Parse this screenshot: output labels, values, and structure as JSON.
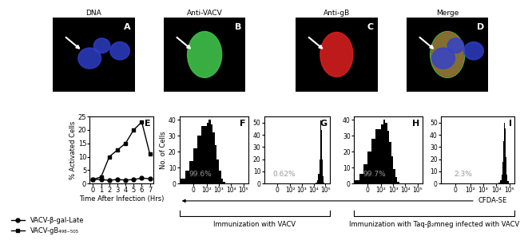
{
  "chart_data": [
    {
      "type": "image",
      "label": "A",
      "title": "DNA"
    },
    {
      "type": "image",
      "label": "B",
      "title": "Anti-VACV"
    },
    {
      "type": "image",
      "label": "C",
      "title": "Anti-gB"
    },
    {
      "type": "image",
      "label": "D",
      "title": "Merge"
    },
    {
      "type": "line",
      "label": "E",
      "x_label": "Time After Infection (Hrs)",
      "y_label": "% Activated Cells",
      "x": [
        0,
        1,
        2,
        3,
        4,
        5,
        6,
        7
      ],
      "series": [
        {
          "name": "VACV-β-gal-Late",
          "color": "#000000",
          "marker": "circle",
          "values": [
            1.5,
            1.5,
            1.2,
            1.5,
            1.3,
            1.5,
            2.0,
            1.8
          ]
        },
        {
          "name": "VACV-gB₄₉₈₋₅₀₅",
          "color": "#000000",
          "marker": "square",
          "values": [
            1.5,
            2.5,
            10,
            12.5,
            15,
            20,
            23,
            11
          ]
        }
      ],
      "xlim": [
        -0.4,
        7.4
      ],
      "xticks": [
        0,
        1,
        2,
        3,
        4,
        5,
        6,
        7
      ],
      "ylim": [
        0,
        25
      ],
      "yticks": [
        0,
        5,
        10,
        15,
        20,
        25
      ],
      "legend": "upper left"
    },
    {
      "type": "histogram",
      "label": "F",
      "y_label": "No. of Cells",
      "annotation": "99.6%",
      "color": "#000000",
      "log": "x",
      "bins": [
        -100,
        -60,
        -30,
        0,
        30,
        60,
        100,
        150,
        220,
        320,
        460,
        680,
        1000,
        1500,
        2200,
        3300
      ],
      "counts": [
        3,
        8,
        14,
        22,
        30,
        36,
        38,
        40,
        37,
        32,
        24,
        15,
        8,
        3,
        1
      ],
      "xlim": [
        -100,
        250000
      ],
      "xticks": [
        {
          "value": 0,
          "label": "0"
        },
        {
          "value": 100,
          "label": "10²"
        },
        {
          "value": 1000,
          "label": "10³"
        },
        {
          "value": 10000,
          "label": "10⁴"
        },
        {
          "value": 100000,
          "label": "10⁵"
        }
      ],
      "ylim": [
        0,
        42
      ],
      "yticks": [
        0,
        10,
        20,
        30,
        40
      ]
    },
    {
      "type": "histogram",
      "label": "G",
      "annotation": "0.62%",
      "color": "#000000",
      "log": "x",
      "bins": [
        15000,
        20000,
        25000,
        30000,
        35000,
        40000,
        45000,
        50000,
        60000,
        70000,
        85000
      ],
      "counts": [
        1,
        3,
        8,
        20,
        38,
        52,
        44,
        20,
        6,
        1
      ],
      "xlim": [
        -100,
        250000
      ],
      "xticks": [
        {
          "value": 0,
          "label": "0"
        },
        {
          "value": 100,
          "label": "10²"
        },
        {
          "value": 1000,
          "label": "10³"
        },
        {
          "value": 10000,
          "label": "10⁴"
        },
        {
          "value": 100000,
          "label": "10⁵"
        }
      ],
      "ylim": [
        0,
        55
      ],
      "yticks": [
        0,
        10,
        20,
        30,
        40,
        50
      ]
    },
    {
      "type": "histogram",
      "label": "H",
      "annotation": "99.7%",
      "color": "#000000",
      "log": "x",
      "bins": [
        -100,
        -60,
        -30,
        0,
        30,
        60,
        100,
        150,
        220,
        320,
        460,
        680,
        1000,
        1500,
        2200,
        3300
      ],
      "counts": [
        2,
        6,
        12,
        20,
        28,
        34,
        37,
        40,
        38,
        33,
        26,
        17,
        9,
        4,
        1
      ],
      "xlim": [
        -100,
        250000
      ],
      "xticks": [
        {
          "value": 0,
          "label": "0"
        },
        {
          "value": 100,
          "label": "10²"
        },
        {
          "value": 1000,
          "label": "10³"
        },
        {
          "value": 10000,
          "label": "10⁴"
        },
        {
          "value": 100000,
          "label": "10⁵"
        }
      ],
      "ylim": [
        0,
        42
      ],
      "yticks": [
        0,
        10,
        20,
        30,
        40
      ]
    },
    {
      "type": "histogram",
      "label": "I",
      "annotation": "2.3%",
      "color": "#000000",
      "log": "x",
      "bins": [
        15000,
        20000,
        25000,
        30000,
        35000,
        40000,
        45000,
        50000,
        60000,
        70000,
        85000
      ],
      "counts": [
        1,
        3,
        7,
        18,
        35,
        50,
        45,
        22,
        7,
        2
      ],
      "xlim": [
        -100,
        250000
      ],
      "xticks": [
        {
          "value": 0,
          "label": "0"
        },
        {
          "value": 100,
          "label": "10²"
        },
        {
          "value": 1000,
          "label": "10³"
        },
        {
          "value": 10000,
          "label": "10⁴"
        },
        {
          "value": 100000,
          "label": "10⁵"
        }
      ],
      "ylim": [
        0,
        55
      ],
      "yticks": [
        0,
        10,
        20,
        30,
        40,
        50
      ]
    }
  ],
  "figure": {
    "x_label": "CFDA-SE",
    "groups": [
      {
        "text": "Immunization with VACV",
        "panels": [
          "F",
          "G"
        ]
      },
      {
        "text": "Immunization with Taq-β₂mneg infected with VACV",
        "panels": [
          "H",
          "I"
        ]
      }
    ]
  }
}
